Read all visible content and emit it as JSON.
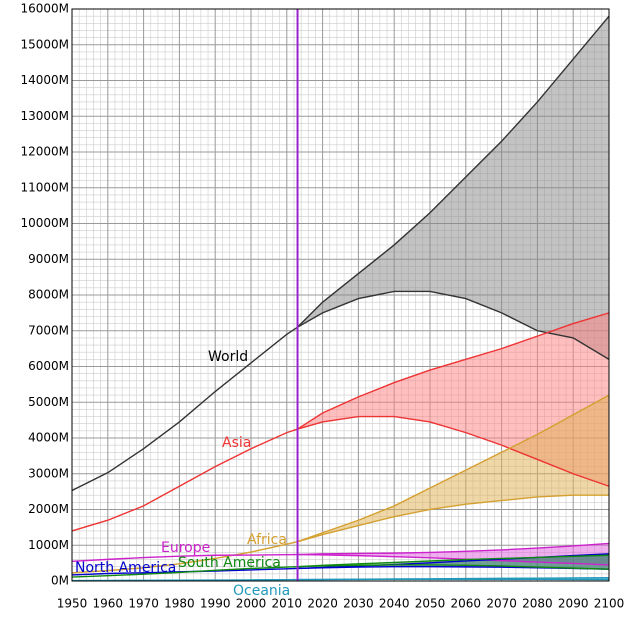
{
  "chart_data": {
    "type": "line",
    "x": [
      1950,
      1960,
      1970,
      1980,
      1990,
      2000,
      2010,
      2013,
      2020,
      2030,
      2040,
      2050,
      2060,
      2070,
      2080,
      2090,
      2100
    ],
    "series": [
      {
        "name": "World",
        "color": "#333333",
        "band_color": "#888888",
        "values": [
          2530,
          3030,
          3700,
          4450,
          5300,
          6100,
          6900,
          7100,
          null,
          null,
          null,
          null,
          null,
          null,
          null,
          null,
          null
        ],
        "high": [
          null,
          null,
          null,
          null,
          null,
          null,
          null,
          7100,
          7800,
          8600,
          9400,
          10300,
          11300,
          12300,
          13400,
          14600,
          15800
        ],
        "low": [
          null,
          null,
          null,
          null,
          null,
          null,
          null,
          7100,
          7500,
          7900,
          8100,
          8100,
          7900,
          7500,
          7000,
          6800,
          6200
        ]
      },
      {
        "name": "Asia",
        "color": "#ee3333",
        "band_color": "#ff8080",
        "values": [
          1400,
          1700,
          2100,
          2650,
          3200,
          3700,
          4150,
          4250,
          null,
          null,
          null,
          null,
          null,
          null,
          null,
          null,
          null
        ],
        "high": [
          null,
          null,
          null,
          null,
          null,
          null,
          null,
          4250,
          4700,
          5150,
          5550,
          5900,
          6200,
          6500,
          6850,
          7200,
          7500
        ],
        "low": [
          null,
          null,
          null,
          null,
          null,
          null,
          null,
          4250,
          4450,
          4600,
          4600,
          4450,
          4150,
          3800,
          3400,
          3000,
          2650
        ]
      },
      {
        "name": "Africa",
        "color": "#d4a030",
        "band_color": "#e0b050",
        "values": [
          230,
          290,
          370,
          480,
          630,
          810,
          1030,
          1100,
          null,
          null,
          null,
          null,
          null,
          null,
          null,
          null,
          null
        ],
        "high": [
          null,
          null,
          null,
          null,
          null,
          null,
          null,
          1100,
          1350,
          1700,
          2100,
          2600,
          3100,
          3600,
          4100,
          4650,
          5200
        ],
        "low": [
          null,
          null,
          null,
          null,
          null,
          null,
          null,
          1100,
          1300,
          1550,
          1800,
          2000,
          2150,
          2250,
          2350,
          2400,
          2400
        ]
      },
      {
        "name": "Europe",
        "color": "#cc22cc",
        "band_color": "#e060e0",
        "values": [
          550,
          605,
          655,
          695,
          720,
          725,
          735,
          740,
          null,
          null,
          null,
          null,
          null,
          null,
          null,
          null,
          null
        ],
        "high": [
          null,
          null,
          null,
          null,
          null,
          null,
          null,
          740,
          760,
          770,
          780,
          800,
          830,
          870,
          920,
          980,
          1050
        ],
        "low": [
          null,
          null,
          null,
          null,
          null,
          null,
          null,
          740,
          730,
          710,
          680,
          650,
          610,
          570,
          530,
          490,
          450
        ]
      },
      {
        "name": "North America",
        "color": "#0000cc",
        "band_color": "#4040e0",
        "values": [
          170,
          210,
          230,
          255,
          280,
          310,
          340,
          350,
          null,
          null,
          null,
          null,
          null,
          null,
          null,
          null,
          null
        ],
        "high": [
          null,
          null,
          null,
          null,
          null,
          null,
          null,
          350,
          380,
          420,
          460,
          510,
          560,
          610,
          660,
          710,
          760
        ],
        "low": [
          null,
          null,
          null,
          null,
          null,
          null,
          null,
          350,
          370,
          390,
          400,
          400,
          395,
          385,
          370,
          350,
          330
        ]
      },
      {
        "name": "South America",
        "color": "#118811",
        "band_color": "#40a040",
        "values": [
          110,
          150,
          190,
          240,
          300,
          350,
          390,
          400,
          null,
          null,
          null,
          null,
          null,
          null,
          null,
          null,
          null
        ],
        "high": [
          null,
          null,
          null,
          null,
          null,
          null,
          null,
          400,
          440,
          480,
          520,
          560,
          600,
          630,
          660,
          690,
          720
        ],
        "low": [
          null,
          null,
          null,
          null,
          null,
          null,
          null,
          400,
          420,
          440,
          450,
          450,
          440,
          420,
          390,
          360,
          330
        ]
      },
      {
        "name": "Oceania",
        "color": "#2299bb",
        "band_color": "#40b0d0",
        "values": [
          13,
          16,
          20,
          23,
          27,
          31,
          37,
          39,
          null,
          null,
          null,
          null,
          null,
          null,
          null,
          null,
          null
        ],
        "high": [
          null,
          null,
          null,
          null,
          null,
          null,
          null,
          39,
          43,
          50,
          56,
          62,
          68,
          74,
          80,
          87,
          94
        ],
        "low": [
          null,
          null,
          null,
          null,
          null,
          null,
          null,
          39,
          41,
          45,
          47,
          48,
          48,
          47,
          46,
          44,
          42
        ]
      }
    ],
    "divider_x": 2013,
    "divider_color": "#9922cc",
    "xlim": [
      1950,
      2100
    ],
    "xticks": [
      1950,
      1960,
      1970,
      1980,
      1990,
      2000,
      2010,
      2020,
      2030,
      2040,
      2050,
      2060,
      2070,
      2080,
      2090,
      2100
    ],
    "ylim": [
      0,
      16000
    ],
    "yticks": [
      {
        "value": 0,
        "label": "0M"
      },
      {
        "value": 1000,
        "label": "1000M"
      },
      {
        "value": 2000,
        "label": "2000M"
      },
      {
        "value": 3000,
        "label": "3000M"
      },
      {
        "value": 4000,
        "label": "4000M"
      },
      {
        "value": 5000,
        "label": "5000M"
      },
      {
        "value": 6000,
        "label": "6000M"
      },
      {
        "value": 7000,
        "label": "7000M"
      },
      {
        "value": 8000,
        "label": "8000M"
      },
      {
        "value": 9000,
        "label": "9000M"
      },
      {
        "value": 10000,
        "label": "10000M"
      },
      {
        "value": 11000,
        "label": "11000M"
      },
      {
        "value": 12000,
        "label": "12000M"
      },
      {
        "value": 13000,
        "label": "13000M"
      },
      {
        "value": 14000,
        "label": "14000M"
      },
      {
        "value": 15000,
        "label": "15000M"
      },
      {
        "value": 16000,
        "label": "16000M"
      }
    ],
    "grid": true
  }
}
